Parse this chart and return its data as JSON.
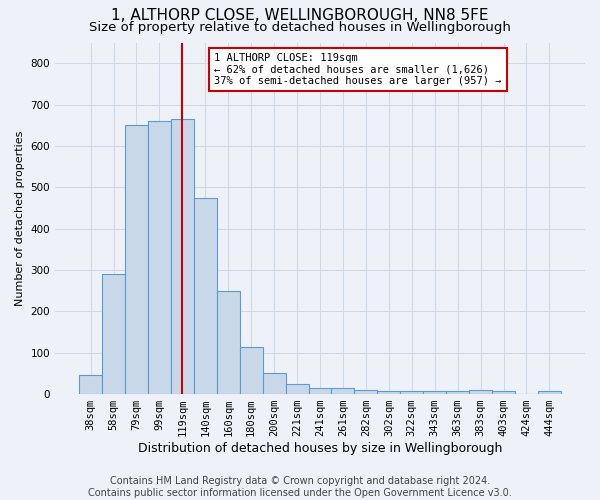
{
  "title": "1, ALTHORP CLOSE, WELLINGBOROUGH, NN8 5FE",
  "subtitle": "Size of property relative to detached houses in Wellingborough",
  "xlabel": "Distribution of detached houses by size in Wellingborough",
  "ylabel": "Number of detached properties",
  "footer1": "Contains HM Land Registry data © Crown copyright and database right 2024.",
  "footer2": "Contains public sector information licensed under the Open Government Licence v3.0.",
  "categories": [
    "38sqm",
    "58sqm",
    "79sqm",
    "99sqm",
    "119sqm",
    "140sqm",
    "160sqm",
    "180sqm",
    "200sqm",
    "221sqm",
    "241sqm",
    "261sqm",
    "282sqm",
    "302sqm",
    "322sqm",
    "343sqm",
    "363sqm",
    "383sqm",
    "403sqm",
    "424sqm",
    "444sqm"
  ],
  "values": [
    45,
    290,
    650,
    660,
    665,
    475,
    250,
    115,
    50,
    25,
    15,
    15,
    10,
    7,
    7,
    7,
    7,
    10,
    7,
    0,
    7
  ],
  "bar_color": "#c8d8e8",
  "bar_edge_color": "#5b9bd5",
  "vline_index": 4,
  "vline_color": "#cc0000",
  "annotation_text": "1 ALTHORP CLOSE: 119sqm\n← 62% of detached houses are smaller (1,626)\n37% of semi-detached houses are larger (957) →",
  "annotation_box_color": "#ffffff",
  "annotation_box_edge": "#cc0000",
  "ylim": [
    0,
    850
  ],
  "yticks": [
    0,
    100,
    200,
    300,
    400,
    500,
    600,
    700,
    800
  ],
  "grid_color": "#d0d8e8",
  "background_color": "#eef2f8",
  "title_fontsize": 11,
  "subtitle_fontsize": 9.5,
  "xlabel_fontsize": 9,
  "ylabel_fontsize": 8,
  "tick_fontsize": 7.5,
  "annotation_fontsize": 7.5,
  "footer_fontsize": 7
}
